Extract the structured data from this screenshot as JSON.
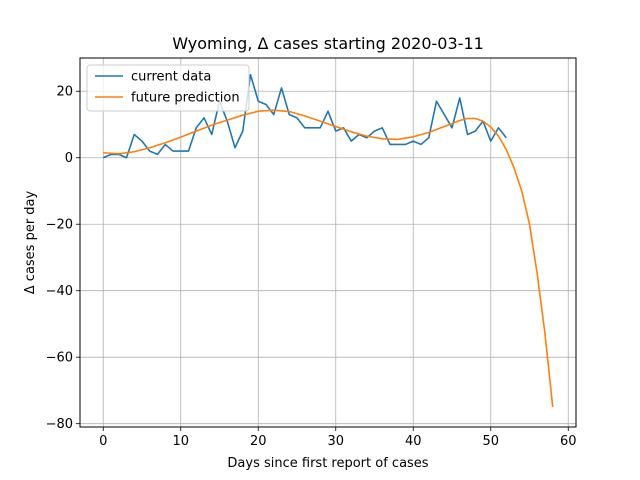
{
  "chart_data": {
    "type": "line",
    "title": "Wyoming, Δ cases starting 2020-03-11",
    "xlabel": "Days since first report of cases",
    "ylabel": "Δ cases per day",
    "xlim": [
      -3,
      61
    ],
    "ylim": [
      -81,
      30
    ],
    "xticks": [
      0,
      10,
      20,
      30,
      40,
      50,
      60
    ],
    "yticks": [
      -80,
      -60,
      -40,
      -20,
      0,
      20
    ],
    "grid": true,
    "legend_position": "top-left",
    "series": [
      {
        "name": "current data",
        "color": "#1f77b4",
        "x": [
          0,
          1,
          2,
          3,
          4,
          5,
          6,
          7,
          8,
          9,
          10,
          11,
          12,
          13,
          14,
          15,
          16,
          17,
          18,
          19,
          20,
          21,
          22,
          23,
          24,
          25,
          26,
          27,
          28,
          29,
          30,
          31,
          32,
          33,
          34,
          35,
          36,
          37,
          38,
          39,
          40,
          41,
          42,
          43,
          44,
          45,
          46,
          47,
          48,
          49,
          50,
          51,
          52
        ],
        "y": [
          0,
          1,
          1,
          0,
          7,
          5,
          2,
          1,
          4,
          2,
          2,
          2,
          9,
          12,
          7,
          17,
          11,
          3,
          8,
          25,
          17,
          16,
          13,
          21,
          13,
          12,
          9,
          9,
          9,
          14,
          8,
          9,
          5,
          7,
          6,
          8,
          9,
          4,
          4,
          4,
          5,
          4,
          6,
          17,
          13,
          9,
          18,
          7,
          8,
          11,
          5,
          9,
          6
        ]
      },
      {
        "name": "future prediction",
        "color": "#ff7f0e",
        "x": [
          0,
          2,
          4,
          6,
          8,
          10,
          12,
          14,
          16,
          18,
          20,
          22,
          24,
          26,
          28,
          30,
          32,
          34,
          36,
          38,
          40,
          42,
          44,
          46,
          47,
          48,
          49,
          50,
          51,
          52,
          53,
          54,
          55,
          56,
          57,
          58
        ],
        "y": [
          1.5,
          1.2,
          1.8,
          3,
          4.5,
          6.2,
          8,
          9.8,
          11.3,
          12.8,
          14,
          14.3,
          13.9,
          12.6,
          11,
          9.4,
          7.8,
          6.5,
          5.7,
          5.5,
          6.3,
          7.6,
          9.4,
          11.2,
          11.8,
          11.8,
          11,
          9.2,
          6.5,
          2.5,
          -3,
          -10,
          -20,
          -35,
          -53,
          -75
        ]
      }
    ]
  }
}
